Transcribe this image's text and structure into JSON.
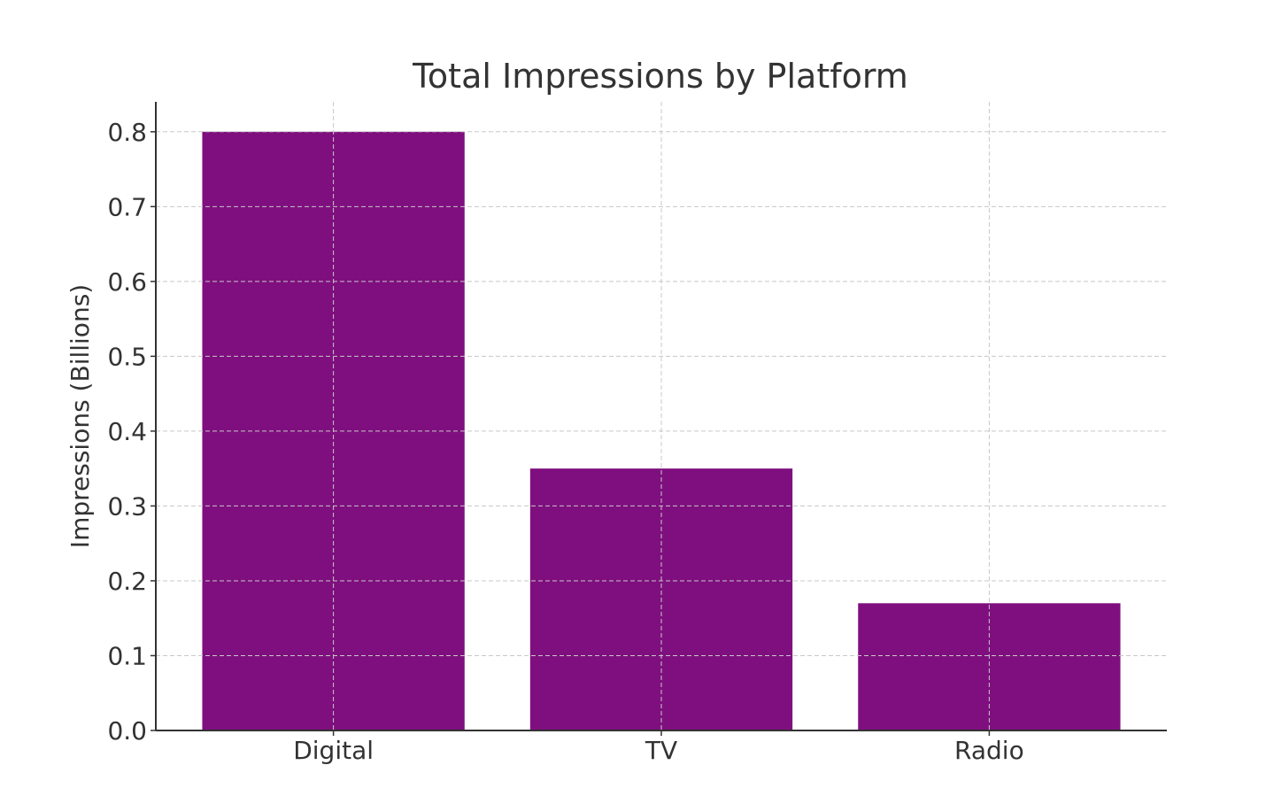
{
  "chart_data": {
    "type": "bar",
    "title": "Total Impressions by Platform",
    "xlabel": "",
    "ylabel": "Impressions (Billions)",
    "categories": [
      "Digital",
      "TV",
      "Radio"
    ],
    "values": [
      0.8,
      0.35,
      0.17
    ],
    "ylim": [
      0,
      0.84
    ],
    "yticks": [
      0.0,
      0.1,
      0.2,
      0.3,
      0.4,
      0.5,
      0.6,
      0.7,
      0.8
    ],
    "ytick_labels": [
      "0.0",
      "0.1",
      "0.2",
      "0.3",
      "0.4",
      "0.5",
      "0.6",
      "0.7",
      "0.8"
    ],
    "grid": true,
    "bar_color": "#7f0f7e"
  }
}
